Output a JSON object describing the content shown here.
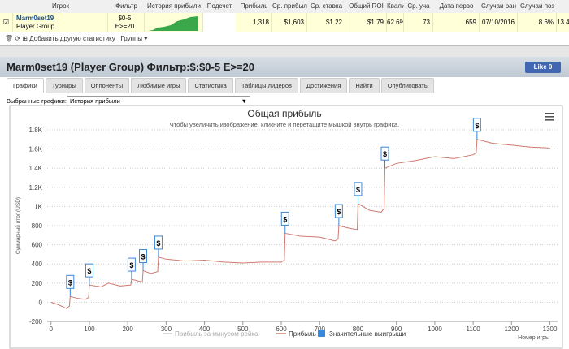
{
  "table": {
    "headers": [
      "Игрок",
      "Фильтр",
      "История прибыли",
      "Подсчет",
      "Прибыль",
      "Ср. прибыл",
      "Ср. ставка",
      "Общий ROI",
      "Квалиф",
      "Ср. уча",
      "Дата перво",
      "Случаи ран",
      "Случаи поз"
    ],
    "row": {
      "player": "Marm0set19",
      "group": "Player Group",
      "filter": [
        "$0-5",
        "E>=20"
      ],
      "cells": [
        "1,318",
        "$1,603",
        "$1.22",
        "$1.79",
        "62.6%",
        "73",
        "659",
        "07/10/2016",
        "8.6%",
        "13.4%"
      ]
    }
  },
  "toolbar": {
    "add": "Добавить другую статистику",
    "groups": "Группы"
  },
  "panel": {
    "title": "Marm0set19 (Player Group) Фильтр:$:$0-5 E>=20",
    "like": "Like 0",
    "tabs": [
      "Графики",
      "Турниры",
      "Оппоненты",
      "Любимые игры",
      "Статистика",
      "Таблицы лидеров",
      "Достижения",
      "Найти",
      "Опубликовать"
    ],
    "select_label": "Выбранные графики:",
    "select_value": "История прибыли"
  },
  "chart_data": {
    "type": "line",
    "title": "Общая прибыль",
    "subtitle": "Чтобы увеличить изображение, кликните и перетащите мышкой внутрь графика.",
    "y_label": "Суммарный итог (USD)",
    "x_label": "Номер игры",
    "xlim": [
      -10,
      1320
    ],
    "xticks": [
      0,
      100,
      200,
      300,
      400,
      500,
      600,
      700,
      800,
      900,
      1000,
      1100,
      1200,
      1300
    ],
    "ylim": [
      -200,
      1800
    ],
    "yticks": [
      -200,
      0,
      200,
      400,
      600,
      800,
      {
        "value": 1000,
        "label": "1K"
      },
      {
        "value": 1200,
        "label": "1.2K"
      },
      {
        "value": 1400,
        "label": "1.4K"
      },
      {
        "value": 1600,
        "label": "1.6K"
      },
      {
        "value": 1800,
        "label": "1.8K"
      }
    ],
    "grid": true,
    "series": [
      {
        "name": "Прибыль за минусом рейка",
        "color": "#cccccc",
        "visible": false
      },
      {
        "name": "Прибыль",
        "color": "#cf7a70",
        "visible": true,
        "x": [
          0,
          15,
          30,
          40,
          48,
          50,
          70,
          90,
          98,
          100,
          130,
          150,
          180,
          208,
          210,
          230,
          238,
          240,
          260,
          278,
          280,
          300,
          350,
          400,
          450,
          500,
          550,
          600,
          608,
          610,
          650,
          700,
          740,
          748,
          750,
          780,
          798,
          800,
          830,
          860,
          868,
          870,
          900,
          950,
          1000,
          1050,
          1100,
          1108,
          1110,
          1150,
          1200,
          1250,
          1300
        ],
        "values": [
          0,
          -20,
          -45,
          -65,
          -40,
          60,
          40,
          30,
          50,
          180,
          160,
          200,
          170,
          180,
          240,
          220,
          210,
          330,
          300,
          320,
          470,
          450,
          430,
          440,
          420,
          410,
          420,
          420,
          440,
          720,
          690,
          680,
          640,
          660,
          800,
          770,
          760,
          1030,
          960,
          940,
          980,
          1400,
          1450,
          1480,
          1520,
          1500,
          1540,
          1560,
          1700,
          1660,
          1640,
          1620,
          1610
        ]
      }
    ],
    "markers": {
      "name": "Значительные выигрыши",
      "color": "#3a87d6",
      "label": "$",
      "x": [
        50,
        100,
        210,
        240,
        280,
        610,
        750,
        800,
        870,
        1110
      ],
      "values": [
        60,
        180,
        240,
        330,
        470,
        720,
        800,
        1030,
        1400,
        1700
      ]
    }
  }
}
